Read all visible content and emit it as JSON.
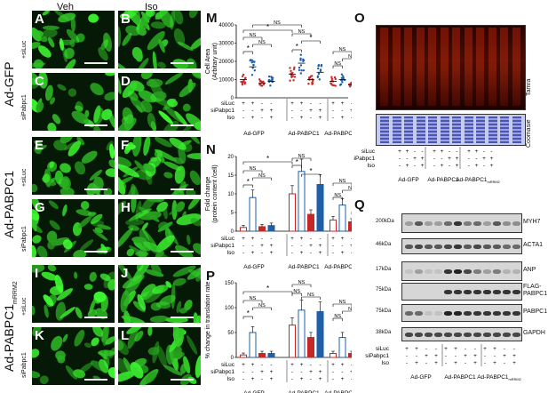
{
  "columns": {
    "veh": "Veh",
    "iso": "Iso"
  },
  "rows": {
    "ad_gfp": "Ad-GFP",
    "ad_pabpc1": "Ad-PABPC1",
    "ad_pabpc1_mrrm2": "Ad-PABPC1",
    "mrrm2_sub": "mRRM2",
    "siluc": "+siLuc",
    "sipabpc1": "siPabpc1"
  },
  "panels": [
    "A",
    "B",
    "C",
    "D",
    "E",
    "F",
    "G",
    "H",
    "I",
    "J",
    "K",
    "L"
  ],
  "panel_labels": {
    "M": "M",
    "N": "N",
    "O": "O",
    "P": "P",
    "Q": "Q"
  },
  "treat_labels": [
    "siLuc",
    "siPabpc1",
    "Iso"
  ],
  "treat_signs": [
    [
      "+",
      "+",
      "-",
      "-"
    ],
    [
      "-",
      "-",
      "+",
      "+"
    ],
    [
      "-",
      "+",
      "-",
      "+"
    ]
  ],
  "group_labels": [
    "Ad-GFP",
    "Ad-PABPC1",
    "Ad-PABPC1"
  ],
  "group_sub": "mRRM2",
  "sig": {
    "star": "*",
    "ns": "NS"
  },
  "panel_o": {
    "tamra": "Tamra",
    "coomasie": "Coomasie"
  },
  "panel_q": {
    "markers": [
      "200kDa",
      "46kDa",
      "17kDa",
      "75kDa",
      "75kDa",
      "38kDa"
    ],
    "proteins": [
      "MYH7",
      "ACTA1",
      "ANP",
      "FLAG-\nPABPC1",
      "PABPC1",
      "GAPDH"
    ]
  },
  "colors": {
    "blue": "#1f5fa8",
    "red": "#c62828",
    "darkred": "#8b1a1a",
    "grayblue": "#6b8fb5"
  },
  "chart_data": [
    {
      "type": "scatter",
      "panel": "M",
      "ylabel": "Cell Area (Arbitary unit)",
      "ylim": [
        0,
        40000
      ],
      "yticks": [
        0,
        10000,
        20000,
        30000,
        40000
      ],
      "groups": [
        "Ad-GFP",
        "Ad-PABPC1",
        "Ad-PABPC1mRRM2"
      ],
      "series": [
        {
          "values": [
            10000,
            17000,
            8000,
            9000
          ]
        },
        {
          "values": [
            13000,
            19000,
            10000,
            14000
          ]
        },
        {
          "values": [
            9000,
            10000,
            7000,
            8000
          ]
        }
      ]
    },
    {
      "type": "bar",
      "panel": "N",
      "ylabel": "Fold change (protein content /cell)",
      "ylim": [
        0,
        20
      ],
      "yticks": [
        0,
        5,
        10,
        15,
        20
      ],
      "groups": [
        "Ad-GFP",
        "Ad-PABPC1",
        "Ad-PABPC1mRRM2"
      ],
      "series": [
        {
          "values": [
            1.0,
            9.0,
            1.2,
            1.5
          ]
        },
        {
          "values": [
            10.0,
            16.0,
            4.5,
            12.5
          ]
        },
        {
          "values": [
            3.0,
            7.0,
            2.5,
            3.0
          ]
        }
      ]
    },
    {
      "type": "bar",
      "panel": "P",
      "ylabel": "% change in translation rate",
      "ylim": [
        0,
        150
      ],
      "yticks": [
        0,
        50,
        100,
        150
      ],
      "groups": [
        "Ad-GFP",
        "Ad-PABPC1",
        "Ad-PABPC1mRRM2"
      ],
      "series": [
        {
          "values": [
            5,
            50,
            8,
            8
          ]
        },
        {
          "values": [
            65,
            95,
            40,
            92
          ]
        },
        {
          "values": [
            8,
            40,
            8,
            10
          ]
        }
      ]
    }
  ]
}
